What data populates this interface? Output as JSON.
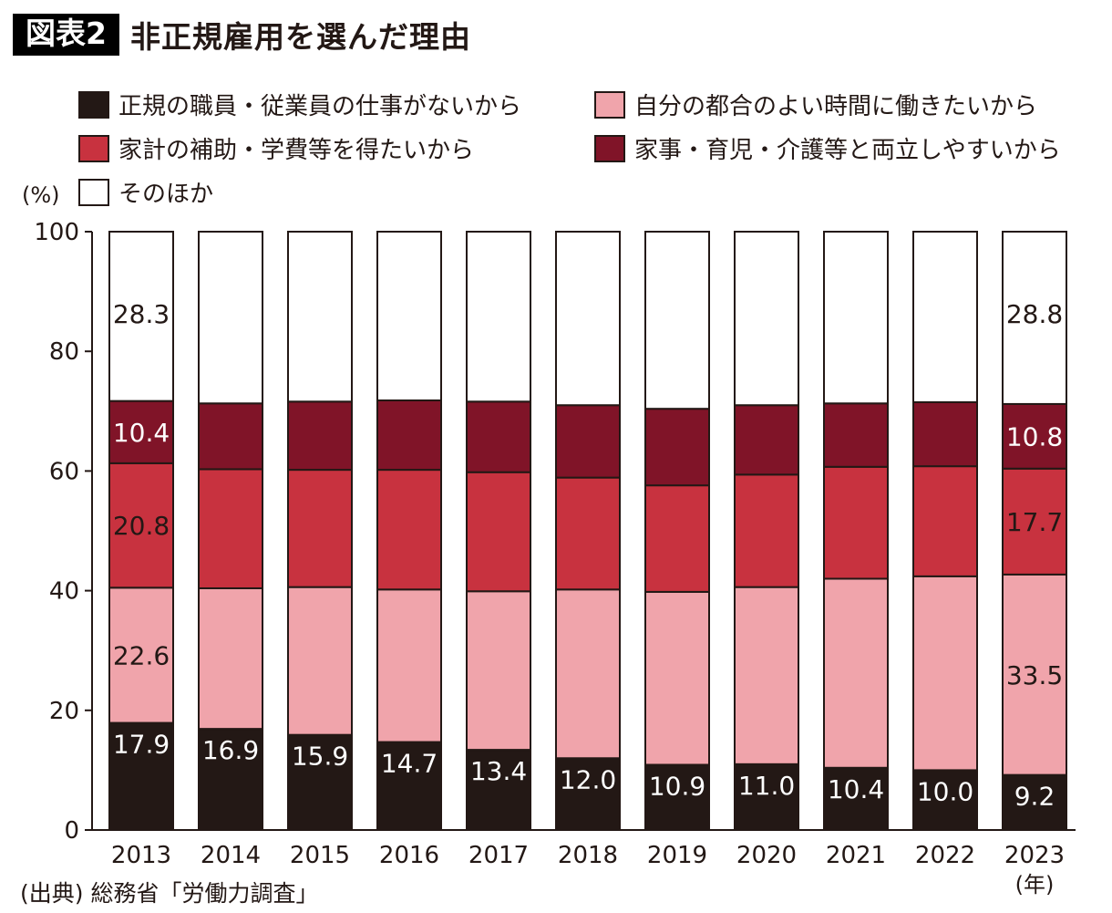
{
  "header": {
    "badge": "図表2",
    "title": "非正規雇用を選んだ理由"
  },
  "unit_label": "(%)",
  "year_suffix": "(年)",
  "source": "(出典) 総務省「労働力調査」",
  "colors": {
    "black": "#231815",
    "pink": "#f0a4ab",
    "red": "#c8323f",
    "maroon": "#801428",
    "white": "#ffffff"
  },
  "chart_data": {
    "type": "bar",
    "stacked": true,
    "ylim": [
      0,
      100
    ],
    "yticks": [
      0,
      20,
      40,
      60,
      80,
      100
    ],
    "categories": [
      "2013",
      "2014",
      "2015",
      "2016",
      "2017",
      "2018",
      "2019",
      "2020",
      "2021",
      "2022",
      "2023"
    ],
    "series": [
      {
        "name": "正規の職員・従業員の仕事がないから",
        "color": "#231815",
        "values": [
          17.9,
          16.9,
          15.9,
          14.7,
          13.4,
          12.0,
          10.9,
          11.0,
          10.4,
          10.0,
          9.2
        ],
        "labels": [
          "17.9",
          "16.9",
          "15.9",
          "14.7",
          "13.4",
          "12.0",
          "10.9",
          "11.0",
          "10.4",
          "10.0",
          "9.2"
        ]
      },
      {
        "name": "自分の都合のよい時間に働きたいから",
        "color": "#f0a4ab",
        "values": [
          22.6,
          23.5,
          24.7,
          25.5,
          26.5,
          28.2,
          28.9,
          29.6,
          31.6,
          32.4,
          33.5
        ],
        "labels": [
          "22.6",
          "",
          "",
          "",
          "",
          "",
          "",
          "",
          "",
          "",
          "33.5"
        ]
      },
      {
        "name": "家計の補助・学費等を得たいから",
        "color": "#c8323f",
        "values": [
          20.8,
          19.9,
          19.6,
          20.0,
          19.9,
          18.7,
          17.8,
          18.8,
          18.7,
          18.4,
          17.7
        ],
        "labels": [
          "20.8",
          "",
          "",
          "",
          "",
          "",
          "",
          "",
          "",
          "",
          "17.7"
        ]
      },
      {
        "name": "家事・育児・介護等と両立しやすいから",
        "color": "#801428",
        "values": [
          10.4,
          11.0,
          11.4,
          11.6,
          11.8,
          12.1,
          12.8,
          11.6,
          10.6,
          10.7,
          10.8
        ],
        "labels": [
          "10.4",
          "",
          "",
          "",
          "",
          "",
          "",
          "",
          "",
          "",
          "10.8"
        ]
      },
      {
        "name": "そのほか",
        "color": "#ffffff",
        "values": [
          28.3,
          28.7,
          28.4,
          28.2,
          28.4,
          29.0,
          29.6,
          29.0,
          28.7,
          28.5,
          28.8
        ],
        "labels": [
          "28.3",
          "",
          "",
          "",
          "",
          "",
          "",
          "",
          "",
          "",
          "28.8"
        ]
      }
    ]
  }
}
